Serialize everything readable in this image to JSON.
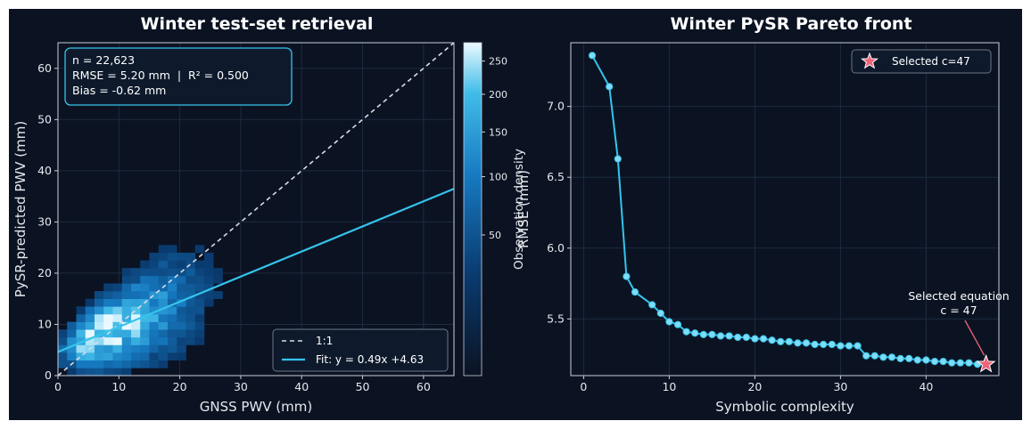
{
  "figure": {
    "background": "#0b1322",
    "axes_background": "#0b1322"
  },
  "chart_data": [
    {
      "type": "scatter",
      "style": "density-heatmap",
      "title": "Winter test-set retrieval",
      "xlabel": "GNSS PWV (mm)",
      "ylabel": "PySR-predicted PWV (mm)",
      "xlim": [
        0,
        65
      ],
      "ylim": [
        0,
        65
      ],
      "xticks": [
        0,
        10,
        20,
        30,
        40,
        50,
        60
      ],
      "yticks": [
        0,
        10,
        20,
        30,
        40,
        50,
        60
      ],
      "grid": true,
      "stats_box": {
        "n": "n = 22,623",
        "rmse_r2": "RMSE = 5.20 mm  |  R² = 0.500",
        "bias": "Bias = -0.62 mm"
      },
      "reference_line": {
        "label": "1:1",
        "slope": 1,
        "intercept": 0,
        "color": "#d9dde6"
      },
      "fit_line": {
        "label": "Fit: y = 0.49x +4.63",
        "slope": 0.49,
        "intercept": 4.63,
        "color": "#35c4ec"
      },
      "legend_position": "bottom-right",
      "density": {
        "center": [
          6,
          8
        ],
        "fit_slope": 0.49,
        "fit_intercept": 4.63
      },
      "colorbar": {
        "label": "Observation density",
        "scale": "sqrt",
        "range": [
          0,
          280
        ],
        "ticks": [
          50,
          100,
          150,
          200,
          250
        ]
      }
    },
    {
      "type": "line",
      "title": "Winter PySR Pareto front",
      "xlabel": "Symbolic complexity",
      "ylabel": "RMSE (mm)",
      "xlim": [
        -1.5,
        48.5
      ],
      "ylim": [
        5.1,
        7.45
      ],
      "xticks": [
        0,
        10,
        20,
        30,
        40
      ],
      "yticks": [
        5.5,
        6.0,
        6.5,
        7.0
      ],
      "ytick_labels": [
        "5.5",
        "6.0",
        "6.5",
        "7.0"
      ],
      "grid": true,
      "line_color": "#35c4ec",
      "x": [
        1,
        3,
        4,
        5,
        6,
        8,
        9,
        10,
        11,
        12,
        13,
        14,
        15,
        16,
        17,
        18,
        19,
        20,
        21,
        22,
        23,
        24,
        25,
        26,
        27,
        28,
        29,
        30,
        31,
        32,
        33,
        34,
        35,
        36,
        37,
        38,
        39,
        40,
        41,
        42,
        43,
        44,
        45,
        46,
        47
      ],
      "y": [
        7.36,
        7.14,
        6.63,
        5.8,
        5.69,
        5.6,
        5.54,
        5.48,
        5.46,
        5.41,
        5.4,
        5.39,
        5.39,
        5.38,
        5.38,
        5.37,
        5.37,
        5.36,
        5.36,
        5.35,
        5.34,
        5.34,
        5.33,
        5.33,
        5.32,
        5.32,
        5.32,
        5.31,
        5.31,
        5.31,
        5.24,
        5.24,
        5.23,
        5.23,
        5.22,
        5.22,
        5.21,
        5.21,
        5.2,
        5.2,
        5.19,
        5.19,
        5.19,
        5.18,
        5.18
      ],
      "selected": {
        "x": 47,
        "y": 5.18,
        "color": "#f0647a",
        "legend_label": "Selected c=47"
      },
      "annotation": {
        "line1": "Selected equation",
        "line2": "c = 47"
      },
      "legend_position": "top-right"
    }
  ]
}
